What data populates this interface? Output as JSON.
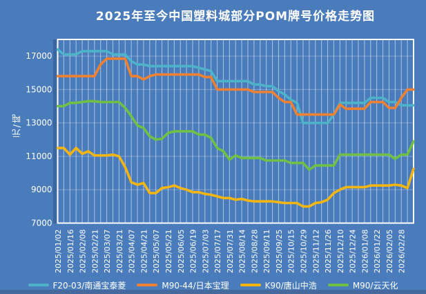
{
  "title": "2025年至今中国塑料城部分POM牌号价格走势图",
  "y_axis": {
    "title": "元/吨",
    "tick_labels": [
      "7000",
      "9000",
      "11000",
      "13000",
      "15000",
      "17000"
    ],
    "ticks": [
      7000,
      9000,
      11000,
      13000,
      15000,
      17000
    ],
    "min": 7000,
    "max": 18000
  },
  "x_axis": {
    "tick_labels": [
      "2025/01/02",
      "2025/01/16",
      "2025/02/08",
      "2025/02/21",
      "2025/03/07",
      "2025/03/21",
      "2025/04/07",
      "2025/04/21",
      "2025/05/07",
      "2025/05/21",
      "2025/06/05",
      "2025/06/19",
      "2025/07/03",
      "2025/07/17",
      "2025/07/31",
      "2025/08/14",
      "2025/08/28",
      "2025/09/11",
      "2025/09/25",
      "2025/10/15",
      "2025/10/29",
      "2025/11/12",
      "2025/11/26",
      "2025/12/10",
      "2025/12/24",
      "2026/01/08",
      "2026/01/22",
      "2026/02/05",
      "2026/02/28"
    ],
    "points_per_tick": 2
  },
  "colors": {
    "background": "#4a7cbb",
    "frame": "#ffffff",
    "grid_vertical": "rgba(255,255,255,0.55)",
    "grid_horizontal": "rgba(255,255,255,0.30)",
    "text": "#ffffff",
    "bottom_strip": "#45689d"
  },
  "chart_data": {
    "type": "line",
    "title": "2025年至今中国塑料城部分POM牌号价格走势图",
    "xlabel": "",
    "ylabel": "元/吨",
    "ylim": [
      7000,
      18000
    ],
    "grid": true,
    "legend_position": "bottom",
    "n_points": 59,
    "x_tick_labels": [
      "2025/01/02",
      "2025/01/16",
      "2025/02/08",
      "2025/02/21",
      "2025/03/07",
      "2025/03/21",
      "2025/04/07",
      "2025/04/21",
      "2025/05/07",
      "2025/05/21",
      "2025/06/05",
      "2025/06/19",
      "2025/07/03",
      "2025/07/17",
      "2025/07/31",
      "2025/08/14",
      "2025/08/28",
      "2025/09/11",
      "2025/09/25",
      "2025/10/15",
      "2025/10/29",
      "2025/11/12",
      "2025/11/26",
      "2025/12/10",
      "2025/12/24",
      "2026/01/08",
      "2026/01/22",
      "2026/02/05",
      "2026/02/28"
    ],
    "tick_every": 2,
    "series": [
      {
        "name": "F20-03/南通宝泰菱",
        "color": "#4db3c8",
        "values": [
          17400,
          17100,
          17100,
          17100,
          17300,
          17300,
          17300,
          17300,
          17300,
          17100,
          17100,
          17100,
          16700,
          16500,
          16500,
          16400,
          16400,
          16400,
          16400,
          16400,
          16400,
          16400,
          16400,
          16300,
          16200,
          16100,
          15500,
          15500,
          15500,
          15500,
          15500,
          15500,
          15300,
          15300,
          15200,
          15200,
          14900,
          14700,
          14400,
          14200,
          13000,
          13000,
          13000,
          13000,
          13000,
          13500,
          14200,
          14200,
          14200,
          14200,
          14200,
          14500,
          14500,
          14500,
          14250,
          14250,
          14050,
          14050,
          14050
        ]
      },
      {
        "name": "M90-44/日本宝理",
        "color": "#f08130",
        "values": [
          15800,
          15800,
          15800,
          15800,
          15800,
          15800,
          15800,
          16500,
          16850,
          16850,
          16850,
          16850,
          15800,
          15800,
          15600,
          15800,
          15900,
          15900,
          15900,
          15900,
          15900,
          15900,
          15900,
          15900,
          15750,
          15750,
          15000,
          15000,
          15000,
          15000,
          15000,
          15000,
          14850,
          14850,
          14850,
          14850,
          14500,
          14250,
          14250,
          13500,
          13500,
          13500,
          13500,
          13500,
          13500,
          13500,
          14100,
          13850,
          13850,
          13850,
          13850,
          14250,
          14250,
          14250,
          13900,
          13900,
          14500,
          15000,
          15000
        ]
      },
      {
        "name": "K90/唐山中浩",
        "color": "#f5b50f",
        "values": [
          11500,
          11500,
          11100,
          11500,
          11150,
          11300,
          11050,
          11050,
          11050,
          11100,
          11000,
          10350,
          9450,
          9300,
          9400,
          8800,
          8800,
          9100,
          9150,
          9250,
          9100,
          9000,
          8850,
          8850,
          8750,
          8700,
          8600,
          8500,
          8500,
          8400,
          8450,
          8350,
          8300,
          8300,
          8300,
          8300,
          8250,
          8200,
          8200,
          8200,
          8000,
          8000,
          8200,
          8250,
          8400,
          8800,
          9000,
          9150,
          9150,
          9150,
          9150,
          9250,
          9250,
          9250,
          9250,
          9300,
          9250,
          9100,
          10250
        ]
      },
      {
        "name": "M90/云天化",
        "color": "#70c043",
        "values": [
          14000,
          14000,
          14200,
          14200,
          14250,
          14300,
          14300,
          14250,
          14250,
          14250,
          14250,
          13900,
          13400,
          12850,
          12700,
          12200,
          12000,
          12050,
          12400,
          12500,
          12500,
          12500,
          12500,
          12300,
          12300,
          12100,
          11500,
          11300,
          10800,
          11050,
          10900,
          10900,
          10900,
          10900,
          10750,
          10750,
          10750,
          10750,
          10600,
          10600,
          10600,
          10200,
          10450,
          10450,
          10450,
          10450,
          11100,
          11100,
          11100,
          11100,
          11100,
          11100,
          11100,
          11100,
          11100,
          10850,
          11100,
          11100,
          11900
        ]
      }
    ]
  },
  "legend": {
    "items": [
      {
        "label": "F20-03/南通宝泰菱",
        "color": "#4db3c8"
      },
      {
        "label": "M90-44/日本宝理",
        "color": "#f08130"
      },
      {
        "label": "K90/唐山中浩",
        "color": "#f5b50f"
      },
      {
        "label": "M90/云天化",
        "color": "#70c043"
      }
    ]
  }
}
